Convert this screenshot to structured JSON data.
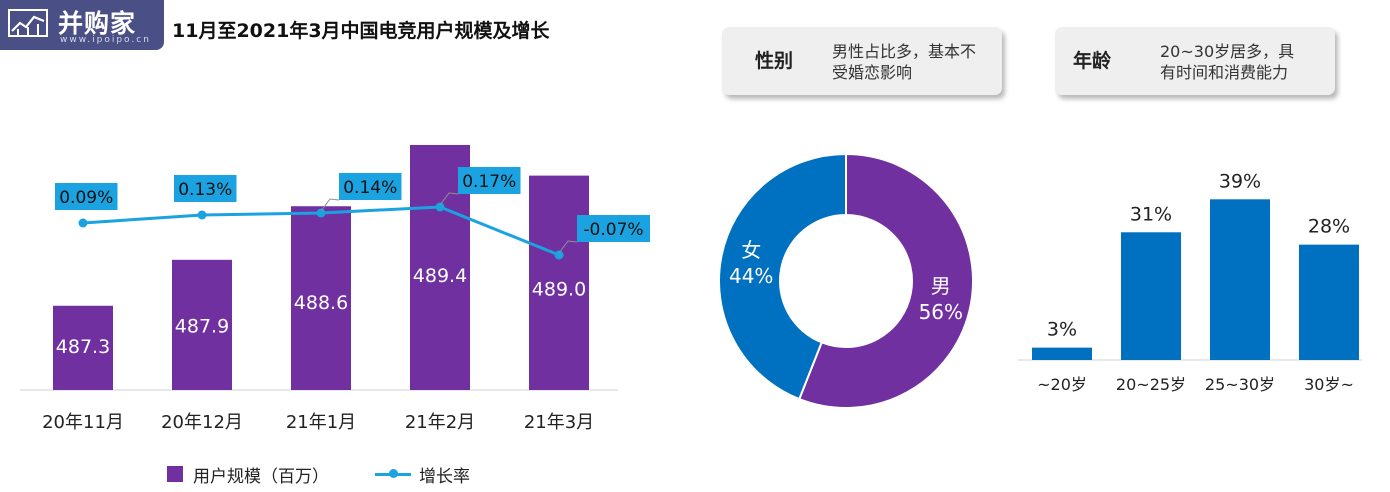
{
  "logo": {
    "brand": "并购家",
    "url": "www.ipoipo.cn"
  },
  "title": "11月至2021年3月中国电竞用户规模及增长",
  "cards": [
    {
      "key": "性别",
      "line1": "男性占比多，基本不",
      "line2": "受婚恋影响"
    },
    {
      "key": "年龄",
      "line1": "20~30岁居多，具",
      "line2": "有时间和消费能力"
    }
  ],
  "colors": {
    "purple": "#7030a0",
    "blue": "#0070c0",
    "cyan": "#1aa3e0"
  },
  "legend": {
    "bar": "用户规模（百万）",
    "line": "增长率"
  },
  "chart_data": [
    {
      "type": "bar",
      "categories": [
        "20年11月",
        "20年12月",
        "21年1月",
        "21年2月",
        "21年3月"
      ],
      "series": [
        {
          "name": "用户规模（百万）",
          "values": [
            487.3,
            487.9,
            488.6,
            489.4,
            489.0
          ],
          "labels": [
            "487.3",
            "487.9",
            "488.6",
            "489.4",
            "489.0"
          ]
        },
        {
          "name": "增长率",
          "type": "line",
          "values": [
            0.09,
            0.13,
            0.14,
            0.17,
            -0.07
          ],
          "labels": [
            "0.09%",
            "0.13%",
            "0.14%",
            "0.17%",
            "-0.07%"
          ]
        }
      ]
    },
    {
      "type": "pie",
      "slices": [
        {
          "label": "男",
          "value": 56,
          "display": "56%"
        },
        {
          "label": "女",
          "value": 44,
          "display": "44%"
        }
      ]
    },
    {
      "type": "bar",
      "categories": [
        "~20岁",
        "20~25岁",
        "25~30岁",
        "30岁~"
      ],
      "values": [
        3,
        31,
        39,
        28
      ],
      "labels": [
        "3%",
        "31%",
        "39%",
        "28%"
      ]
    }
  ]
}
